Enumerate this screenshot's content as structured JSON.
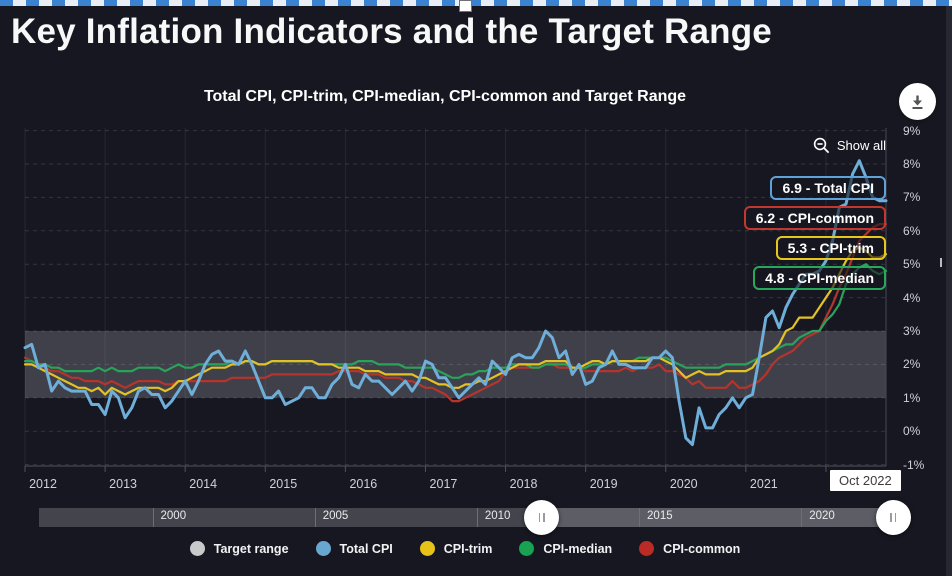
{
  "page": {
    "title": "Key Inflation Indicators and the Target Range"
  },
  "chart": {
    "subtitle": "Total CPI, CPI-trim, CPI-median, CPI-common and Target Range",
    "show_all": "Show all",
    "last_x_label": "Oct 2022"
  },
  "chart_data": {
    "type": "line",
    "title": "Total CPI, CPI-trim, CPI-median, CPI-common and Target Range",
    "x_start": "Jan 2012",
    "x_end": "Oct 2022",
    "points_per_year": 12,
    "ylim": [
      -1,
      9
    ],
    "y_ticks": [
      9,
      8,
      7,
      6,
      5,
      4,
      3,
      2,
      1,
      0,
      -1
    ],
    "y_tick_suffix": "%",
    "x_year_labels": [
      "2012",
      "2013",
      "2014",
      "2015",
      "2016",
      "2017",
      "2018",
      "2019",
      "2020",
      "2021"
    ],
    "grid": true,
    "legend_position": "bottom",
    "target_range": {
      "label": "Target range",
      "low": 1,
      "high": 3,
      "band_color": "#3F404A",
      "legend_color": "#C9C9CC"
    },
    "series": [
      {
        "name": "Total CPI",
        "color": "#6FAED8",
        "width": 3,
        "end_value": 6.9,
        "values": [
          2.5,
          2.6,
          1.9,
          2.0,
          1.2,
          1.5,
          1.3,
          1.2,
          1.2,
          1.2,
          0.8,
          0.8,
          0.5,
          1.2,
          1.0,
          0.4,
          0.7,
          1.2,
          1.3,
          1.1,
          1.1,
          0.7,
          0.9,
          1.2,
          1.5,
          1.1,
          1.5,
          2.0,
          2.3,
          2.4,
          2.1,
          2.1,
          2.0,
          2.4,
          2.0,
          1.5,
          1.0,
          1.0,
          1.2,
          0.8,
          0.9,
          1.0,
          1.3,
          1.3,
          1.0,
          1.0,
          1.4,
          1.6,
          2.0,
          1.4,
          1.3,
          1.7,
          1.5,
          1.5,
          1.3,
          1.1,
          1.3,
          1.5,
          1.2,
          1.5,
          2.1,
          2.0,
          1.6,
          1.6,
          1.3,
          1.0,
          1.2,
          1.4,
          1.6,
          1.4,
          2.1,
          1.9,
          1.7,
          2.2,
          2.3,
          2.2,
          2.2,
          2.5,
          3.0,
          2.8,
          2.2,
          2.4,
          1.7,
          2.0,
          1.4,
          1.5,
          1.9,
          2.0,
          2.4,
          2.0,
          2.0,
          1.9,
          1.9,
          1.9,
          2.2,
          2.2,
          2.4,
          2.2,
          0.9,
          -0.2,
          -0.4,
          0.7,
          0.1,
          0.1,
          0.5,
          0.7,
          1.0,
          0.7,
          1.0,
          1.1,
          2.2,
          3.4,
          3.6,
          3.1,
          3.7,
          4.1,
          4.4,
          4.7,
          4.7,
          4.8,
          5.1,
          5.7,
          6.7,
          6.8,
          7.7,
          8.1,
          7.6,
          7.0,
          6.9,
          6.9
        ]
      },
      {
        "name": "CPI-trim",
        "color": "#E2C226",
        "width": 2.2,
        "end_value": 5.3,
        "values": [
          2.0,
          2.0,
          1.9,
          1.8,
          1.7,
          1.6,
          1.5,
          1.4,
          1.3,
          1.3,
          1.2,
          1.3,
          1.1,
          1.3,
          1.2,
          1.1,
          1.2,
          1.3,
          1.3,
          1.3,
          1.3,
          1.2,
          1.3,
          1.5,
          1.5,
          1.6,
          1.7,
          1.8,
          1.9,
          1.9,
          1.9,
          2.0,
          2.0,
          2.1,
          2.1,
          2.0,
          2.0,
          2.1,
          2.1,
          2.1,
          2.1,
          2.1,
          2.1,
          2.1,
          2.0,
          2.0,
          2.0,
          1.9,
          1.9,
          1.9,
          1.9,
          1.8,
          1.8,
          1.8,
          1.7,
          1.7,
          1.7,
          1.7,
          1.7,
          1.6,
          1.6,
          1.5,
          1.4,
          1.4,
          1.3,
          1.3,
          1.4,
          1.4,
          1.5,
          1.5,
          1.6,
          1.7,
          1.8,
          1.9,
          2.0,
          2.0,
          2.0,
          2.0,
          2.1,
          2.1,
          2.1,
          2.1,
          1.9,
          1.9,
          2.0,
          2.1,
          2.1,
          2.0,
          2.1,
          2.1,
          2.1,
          2.1,
          2.1,
          2.1,
          2.2,
          2.2,
          2.1,
          2.0,
          1.8,
          1.6,
          1.7,
          1.8,
          1.7,
          1.7,
          1.7,
          1.8,
          1.8,
          1.8,
          1.8,
          1.9,
          2.2,
          2.3,
          2.4,
          2.6,
          3.0,
          3.1,
          3.4,
          3.4,
          3.4,
          3.7,
          4.0,
          4.3,
          4.7,
          5.1,
          5.4,
          5.5,
          5.4,
          5.2,
          5.2,
          5.3
        ]
      },
      {
        "name": "CPI-median",
        "color": "#2AA35A",
        "width": 2.2,
        "end_value": 4.8,
        "values": [
          2.1,
          2.1,
          2.0,
          2.0,
          1.9,
          1.9,
          1.8,
          1.8,
          1.8,
          1.8,
          1.8,
          1.9,
          1.8,
          1.9,
          1.8,
          1.8,
          1.8,
          1.9,
          1.9,
          1.9,
          1.9,
          1.8,
          1.9,
          2.0,
          1.9,
          1.9,
          2.0,
          2.0,
          2.0,
          2.0,
          2.0,
          2.1,
          2.0,
          2.1,
          2.1,
          2.0,
          2.0,
          2.1,
          2.1,
          2.1,
          2.1,
          2.1,
          2.1,
          2.1,
          2.0,
          2.0,
          2.0,
          2.0,
          2.0,
          2.0,
          2.1,
          2.1,
          2.1,
          2.0,
          2.0,
          2.0,
          2.0,
          1.9,
          1.9,
          1.9,
          1.9,
          1.9,
          1.8,
          1.7,
          1.6,
          1.6,
          1.7,
          1.7,
          1.8,
          1.8,
          1.9,
          1.9,
          1.9,
          2.0,
          2.0,
          2.0,
          1.9,
          1.9,
          2.0,
          2.0,
          2.0,
          2.0,
          1.9,
          1.9,
          1.9,
          2.0,
          2.0,
          2.0,
          2.1,
          2.1,
          2.1,
          2.1,
          2.2,
          2.2,
          2.2,
          2.2,
          2.2,
          2.1,
          2.0,
          1.9,
          1.9,
          1.9,
          1.9,
          1.9,
          1.9,
          2.0,
          2.0,
          2.0,
          2.0,
          2.1,
          2.2,
          2.3,
          2.4,
          2.5,
          2.6,
          2.6,
          2.8,
          2.9,
          3.0,
          3.0,
          3.3,
          3.5,
          3.8,
          4.4,
          4.7,
          4.9,
          5.0,
          4.8,
          4.7,
          4.8
        ]
      },
      {
        "name": "CPI-common",
        "color": "#B5352D",
        "width": 2.2,
        "end_value": 6.2,
        "values": [
          2.2,
          2.1,
          2.0,
          1.9,
          1.8,
          1.8,
          1.7,
          1.6,
          1.6,
          1.5,
          1.5,
          1.5,
          1.4,
          1.5,
          1.4,
          1.3,
          1.4,
          1.5,
          1.5,
          1.5,
          1.5,
          1.4,
          1.4,
          1.5,
          1.5,
          1.5,
          1.5,
          1.5,
          1.5,
          1.5,
          1.5,
          1.6,
          1.6,
          1.6,
          1.6,
          1.6,
          1.6,
          1.7,
          1.7,
          1.7,
          1.7,
          1.7,
          1.7,
          1.7,
          1.7,
          1.7,
          1.7,
          1.8,
          1.8,
          1.8,
          1.8,
          1.7,
          1.7,
          1.7,
          1.6,
          1.6,
          1.6,
          1.5,
          1.5,
          1.4,
          1.3,
          1.3,
          1.2,
          1.1,
          0.9,
          0.9,
          1.0,
          1.1,
          1.2,
          1.3,
          1.4,
          1.5,
          1.8,
          1.9,
          1.9,
          1.9,
          1.9,
          1.9,
          2.0,
          2.0,
          1.9,
          1.9,
          1.9,
          1.9,
          1.8,
          1.8,
          1.8,
          1.8,
          1.8,
          1.8,
          1.9,
          1.8,
          1.9,
          1.9,
          1.9,
          2.0,
          1.8,
          1.8,
          1.7,
          1.6,
          1.4,
          1.5,
          1.3,
          1.3,
          1.3,
          1.3,
          1.5,
          1.3,
          1.3,
          1.4,
          1.5,
          1.7,
          2.0,
          2.2,
          2.3,
          2.4,
          2.6,
          2.8,
          2.9,
          3.0,
          3.4,
          3.8,
          4.3,
          4.7,
          5.2,
          5.7,
          5.9,
          6.1,
          6.2,
          6.2
        ]
      }
    ],
    "end_labels": [
      {
        "text": "6.9 - Total CPI",
        "color": "#5FA2DA"
      },
      {
        "text": "6.2 - CPI-common",
        "color": "#C2372E"
      },
      {
        "text": "5.3 - CPI-trim",
        "color": "#E8C71D"
      },
      {
        "text": "4.8 - CPI-median",
        "color": "#27A95C"
      }
    ]
  },
  "navigator": {
    "axis_start": 1996.5,
    "axis_end": 2022.83,
    "sel_start": 2012,
    "sel_end": 2022.83,
    "labels": [
      {
        "year": 2000,
        "text": "2000"
      },
      {
        "year": 2005,
        "text": "2005"
      },
      {
        "year": 2010,
        "text": "2010"
      },
      {
        "year": 2015,
        "text": "2015"
      },
      {
        "year": 2020,
        "text": "2020"
      }
    ]
  },
  "legend": {
    "items": [
      {
        "label": "Target range",
        "color": "#C9C9CC"
      },
      {
        "label": "Total CPI",
        "color": "#68A8D0"
      },
      {
        "label": "CPI-trim",
        "color": "#E7C31A"
      },
      {
        "label": "CPI-median",
        "color": "#17A351"
      },
      {
        "label": "CPI-common",
        "color": "#BB2B25"
      }
    ]
  }
}
